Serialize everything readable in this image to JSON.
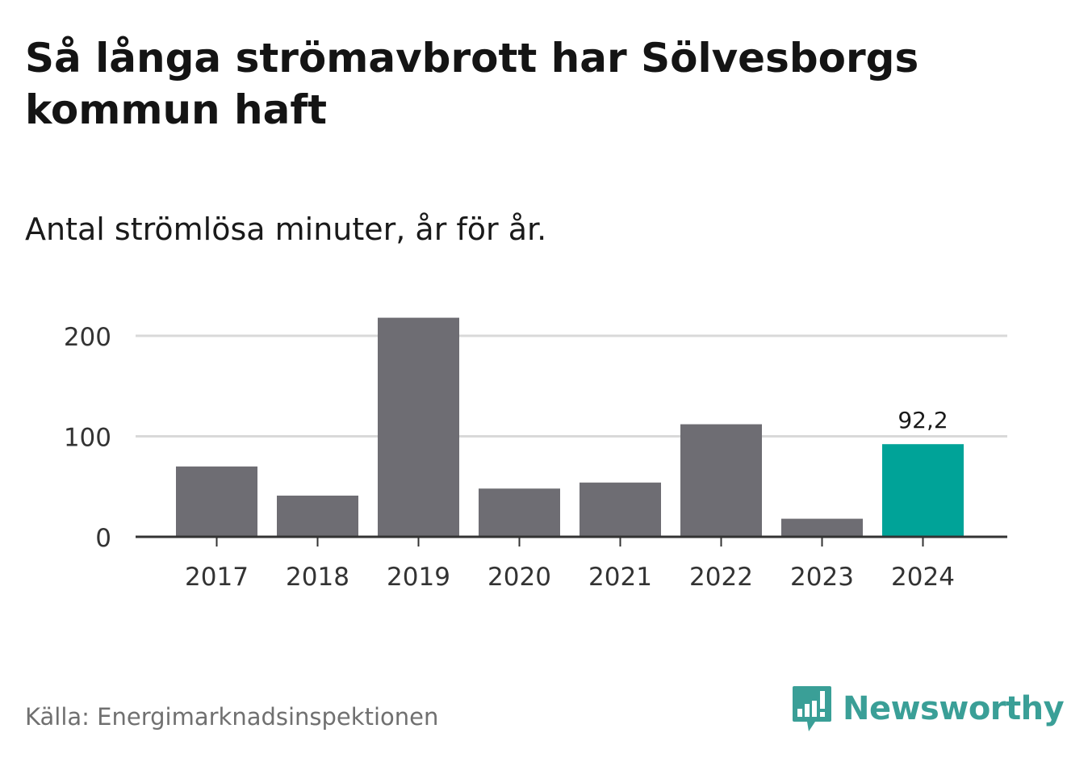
{
  "title": "Så långa strömavbrott har Sölvesborgs kommun haft",
  "subtitle": "Antal strömlösa minuter, år för år.",
  "source": "Källa: Energimarknadsinspektionen",
  "logo": {
    "text": "Newsworthy",
    "icon": "newsworthy-bar-chart-icon",
    "color": "#3a9f97"
  },
  "chart_data": {
    "type": "bar",
    "categories": [
      "2017",
      "2018",
      "2019",
      "2020",
      "2021",
      "2022",
      "2023",
      "2024"
    ],
    "values": [
      70,
      41,
      218,
      48,
      54,
      112,
      18,
      92.2
    ],
    "highlight_index": 7,
    "highlight_label": "92,2",
    "ylim": [
      0,
      220
    ],
    "yticks": [
      0,
      100,
      200
    ],
    "grid": true,
    "colors": {
      "bar": "#6e6d73",
      "highlight": "#00a398",
      "grid": "#d9d9d9",
      "axis": "#333333"
    }
  }
}
